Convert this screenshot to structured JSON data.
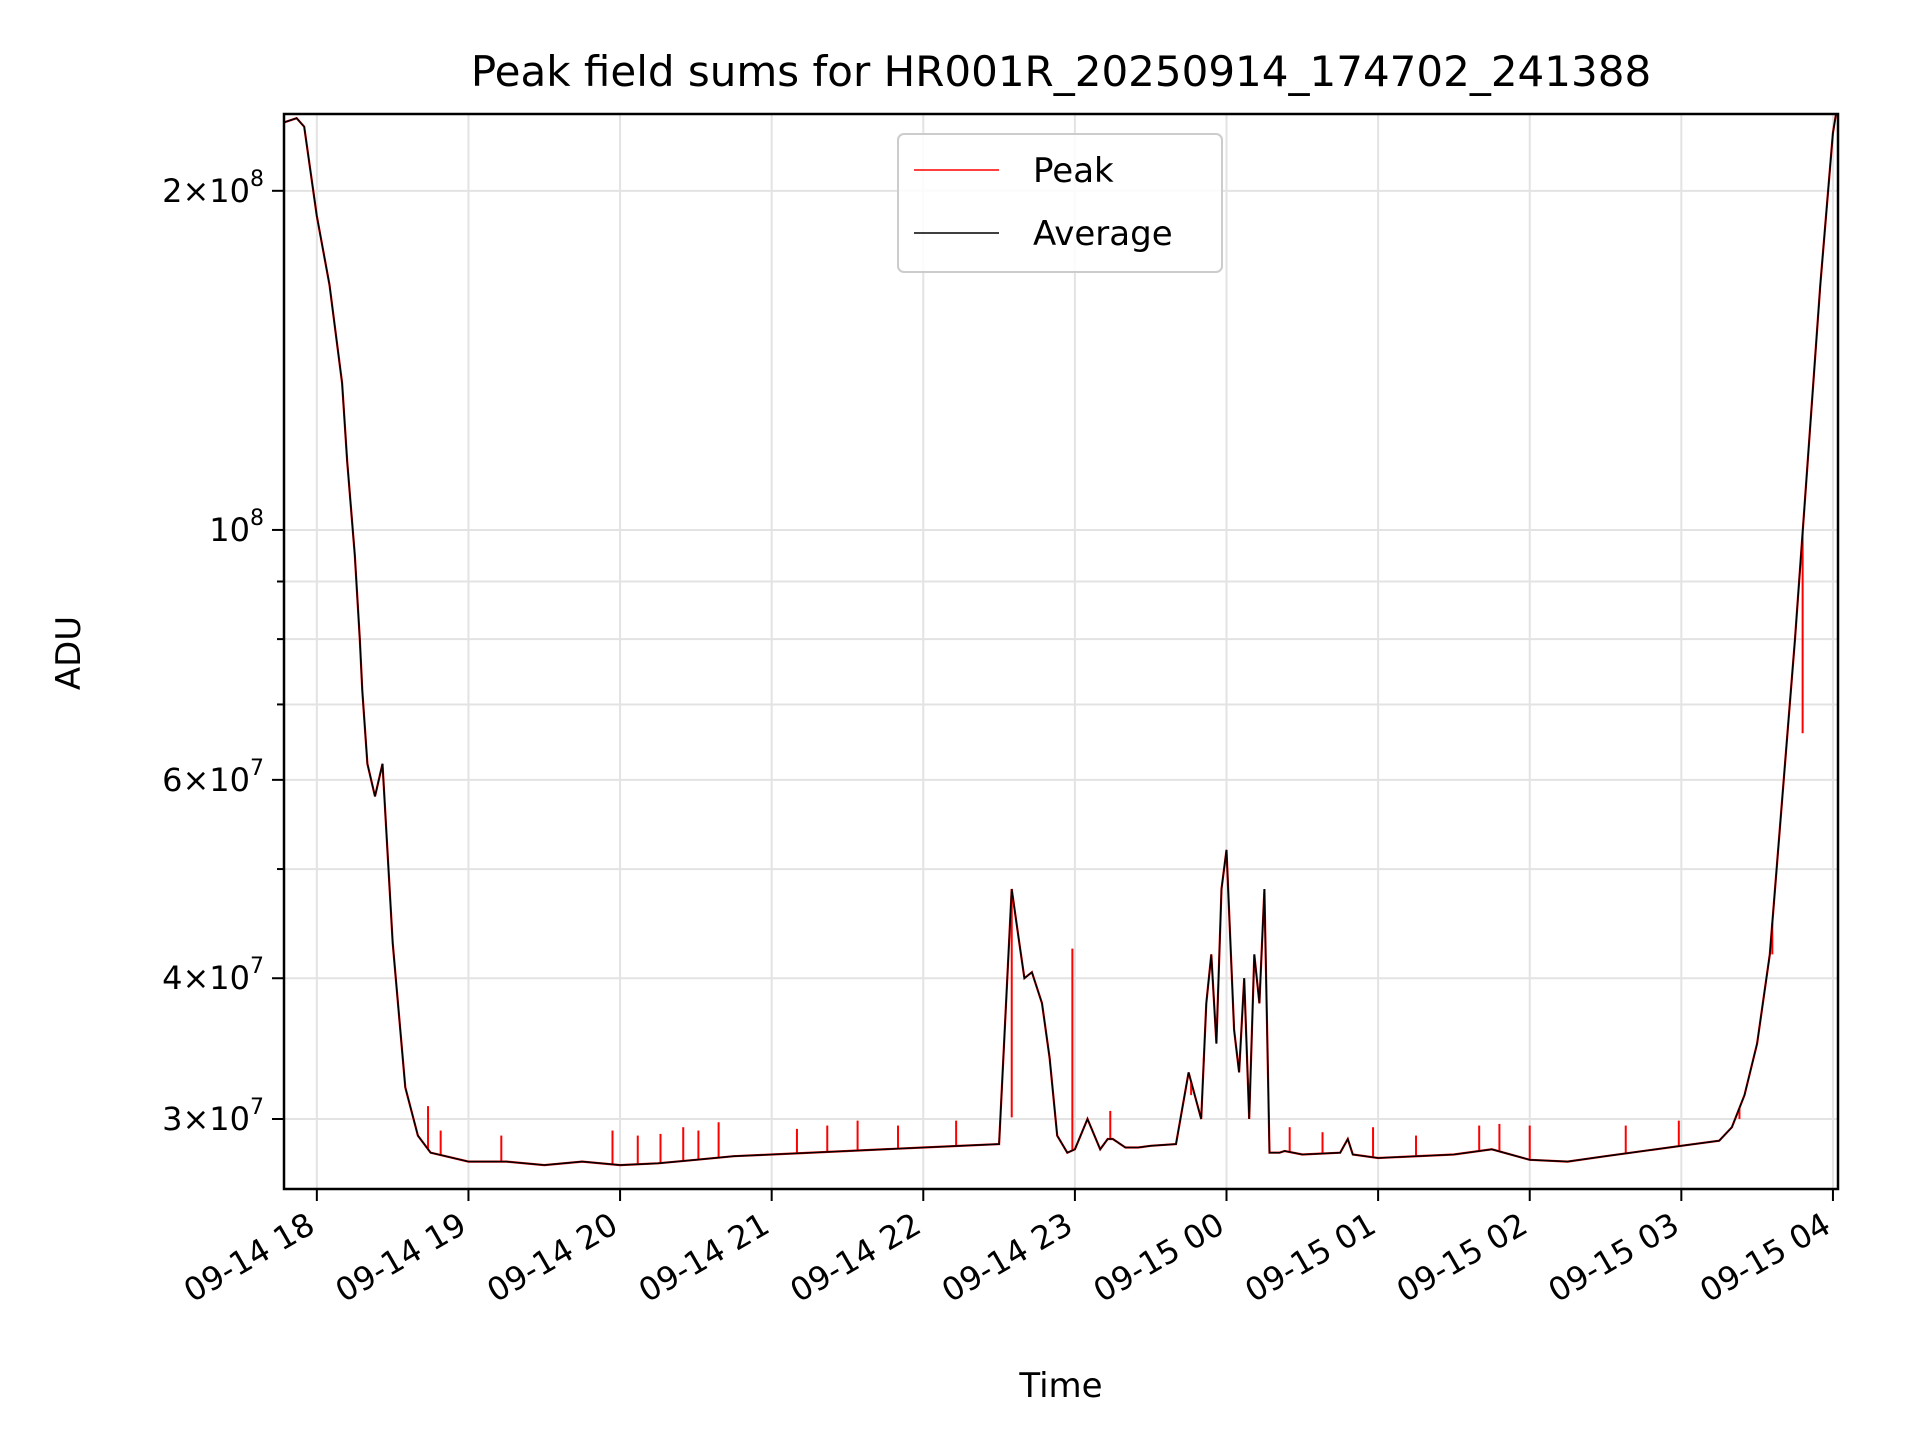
{
  "chart_data": {
    "type": "line",
    "title": "Peak field sums for HR001R_20250914_174702_241388",
    "xlabel": "Time",
    "ylabel": "ADU",
    "yscale": "log",
    "ylim": [
      26000000,
      234000000
    ],
    "xlim": [
      "09-14 17:47",
      "09-15 04:02"
    ],
    "grid": true,
    "legend": {
      "placement": "top-center",
      "entries": [
        "Peak",
        "Average"
      ]
    },
    "colors": {
      "Peak": "#ff0000",
      "Average": "#000000"
    },
    "x_ticks": [
      "09-14 18",
      "09-14 19",
      "09-14 20",
      "09-14 21",
      "09-14 22",
      "09-14 23",
      "09-15 00",
      "09-15 01",
      "09-15 02",
      "09-15 03",
      "09-15 04"
    ],
    "y_ticks": [
      {
        "value": 30000000,
        "mantissa": "3",
        "exp": "7"
      },
      {
        "value": 40000000,
        "mantissa": "4",
        "exp": "7"
      },
      {
        "value": 60000000,
        "mantissa": "6",
        "exp": "7"
      },
      {
        "value": 100000000,
        "mantissa": "",
        "exp": "8"
      },
      {
        "value": 200000000,
        "mantissa": "2",
        "exp": "8"
      }
    ],
    "series": [
      {
        "name": "Average",
        "x": [
          "09-14 17:47",
          "09-14 17:52",
          "09-14 17:55",
          "09-14 18:00",
          "09-14 18:05",
          "09-14 18:10",
          "09-14 18:12",
          "09-14 18:15",
          "09-14 18:17",
          "09-14 18:18",
          "09-14 18:20",
          "09-14 18:23",
          "09-14 18:26",
          "09-14 18:30",
          "09-14 18:35",
          "09-14 18:40",
          "09-14 18:45",
          "09-14 19:00",
          "09-14 19:15",
          "09-14 19:30",
          "09-14 19:45",
          "09-14 20:00",
          "09-14 20:15",
          "09-14 20:30",
          "09-14 20:45",
          "09-14 21:00",
          "09-14 21:30",
          "09-14 22:00",
          "09-14 22:30",
          "09-14 22:35",
          "09-14 22:38",
          "09-14 22:40",
          "09-14 22:43",
          "09-14 22:47",
          "09-14 22:50",
          "09-14 22:53",
          "09-14 22:57",
          "09-14 23:00",
          "09-14 23:05",
          "09-14 23:10",
          "09-14 23:13",
          "09-14 23:15",
          "09-14 23:20",
          "09-14 23:25",
          "09-14 23:30",
          "09-14 23:40",
          "09-14 23:45",
          "09-14 23:50",
          "09-14 23:52",
          "09-14 23:54",
          "09-14 23:56",
          "09-14 23:58",
          "09-15 00:00",
          "09-15 00:03",
          "09-15 00:05",
          "09-15 00:07",
          "09-15 00:09",
          "09-15 00:11",
          "09-15 00:13",
          "09-15 00:15",
          "09-15 00:17",
          "09-15 00:19",
          "09-15 00:21",
          "09-15 00:23",
          "09-15 00:30",
          "09-15 00:45",
          "09-15 00:48",
          "09-15 00:50",
          "09-15 01:00",
          "09-15 01:30",
          "09-15 01:45",
          "09-15 02:00",
          "09-15 02:15",
          "09-15 02:30",
          "09-15 03:00",
          "09-15 03:15",
          "09-15 03:20",
          "09-15 03:25",
          "09-15 03:30",
          "09-15 03:35",
          "09-15 03:40",
          "09-15 03:45",
          "09-15 03:50",
          "09-15 03:55",
          "09-15 04:00",
          "09-15 04:02"
        ],
        "values": [
          230000000,
          232000000,
          228000000,
          190000000,
          165000000,
          135000000,
          115000000,
          95000000,
          80000000,
          72000000,
          62000000,
          58000000,
          62000000,
          43000000,
          32000000,
          29000000,
          28000000,
          27500000,
          27500000,
          27300000,
          27500000,
          27300000,
          27400000,
          27600000,
          27800000,
          27900000,
          28100000,
          28300000,
          28500000,
          48000000,
          43000000,
          40000000,
          40500000,
          38000000,
          34000000,
          29000000,
          28000000,
          28200000,
          30000000,
          28200000,
          28800000,
          28800000,
          28300000,
          28300000,
          28400000,
          28500000,
          33000000,
          30000000,
          38000000,
          42000000,
          35000000,
          48000000,
          52000000,
          36000000,
          33000000,
          40000000,
          30000000,
          42000000,
          38000000,
          48000000,
          28000000,
          28000000,
          28000000,
          28100000,
          27900000,
          28000000,
          28800000,
          27900000,
          27700000,
          27900000,
          28200000,
          27600000,
          27500000,
          27800000,
          28400000,
          28700000,
          29500000,
          31500000,
          35000000,
          42000000,
          58000000,
          80000000,
          115000000,
          165000000,
          225000000,
          240000000
        ]
      },
      {
        "name": "Peak",
        "spikes": [
          [
            "09-14 18:44",
            30800000
          ],
          [
            "09-14 18:49",
            29300000
          ],
          [
            "09-14 19:13",
            29000000
          ],
          [
            "09-14 19:57",
            29300000
          ],
          [
            "09-14 20:07",
            29000000
          ],
          [
            "09-14 20:16",
            29100000
          ],
          [
            "09-14 20:25",
            29500000
          ],
          [
            "09-14 20:31",
            29300000
          ],
          [
            "09-14 20:39",
            29800000
          ],
          [
            "09-14 21:10",
            29400000
          ],
          [
            "09-14 21:22",
            29600000
          ],
          [
            "09-14 21:34",
            29900000
          ],
          [
            "09-14 21:50",
            29600000
          ],
          [
            "09-14 22:13",
            29900000
          ],
          [
            "09-14 22:35",
            30100000
          ],
          [
            "09-14 22:59",
            42500000
          ],
          [
            "09-14 23:14",
            30500000
          ],
          [
            "09-14 23:46",
            31500000
          ],
          [
            "09-14 23:51",
            34000000
          ],
          [
            "09-15 00:25",
            29500000
          ],
          [
            "09-15 00:38",
            29200000
          ],
          [
            "09-15 00:58",
            29500000
          ],
          [
            "09-15 01:15",
            29000000
          ],
          [
            "09-15 01:40",
            29600000
          ],
          [
            "09-15 01:48",
            29700000
          ],
          [
            "09-15 02:00",
            29600000
          ],
          [
            "09-15 02:38",
            29600000
          ],
          [
            "09-15 02:59",
            29900000
          ],
          [
            "09-15 03:23",
            30000000
          ],
          [
            "09-15 03:36",
            42000000
          ],
          [
            "09-15 03:48",
            66000000
          ]
        ]
      }
    ]
  }
}
